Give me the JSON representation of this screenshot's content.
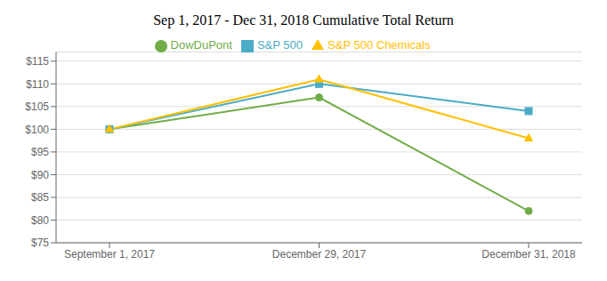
{
  "chart_data": {
    "type": "line",
    "title": "Sep 1, 2017 - Dec 31, 2018 Cumulative Total Return",
    "categories": [
      "September 1, 2017",
      "December 29, 2017",
      "December 31, 2018"
    ],
    "series": [
      {
        "name": "DowDuPont",
        "color": "#70ad47",
        "marker": "circle",
        "values": [
          100,
          107,
          82
        ]
      },
      {
        "name": "S&P 500",
        "color": "#4bacc6",
        "marker": "square",
        "values": [
          100,
          110,
          104
        ]
      },
      {
        "name": "S&P 500 Chemicals",
        "color": "#ffc000",
        "marker": "triangle",
        "values": [
          100,
          111,
          98
        ]
      }
    ],
    "ylim": [
      75,
      117
    ],
    "yticks": [
      {
        "value": 75,
        "label": "$75"
      },
      {
        "value": 80,
        "label": "$80"
      },
      {
        "value": 85,
        "label": "$85"
      },
      {
        "value": 90,
        "label": "$90"
      },
      {
        "value": 95,
        "label": "$95"
      },
      {
        "value": 100,
        "label": "$100"
      },
      {
        "value": 105,
        "label": "$105"
      },
      {
        "value": 110,
        "label": "$110"
      },
      {
        "value": 115,
        "label": "$115"
      }
    ],
    "grid": true,
    "legend": "top"
  }
}
